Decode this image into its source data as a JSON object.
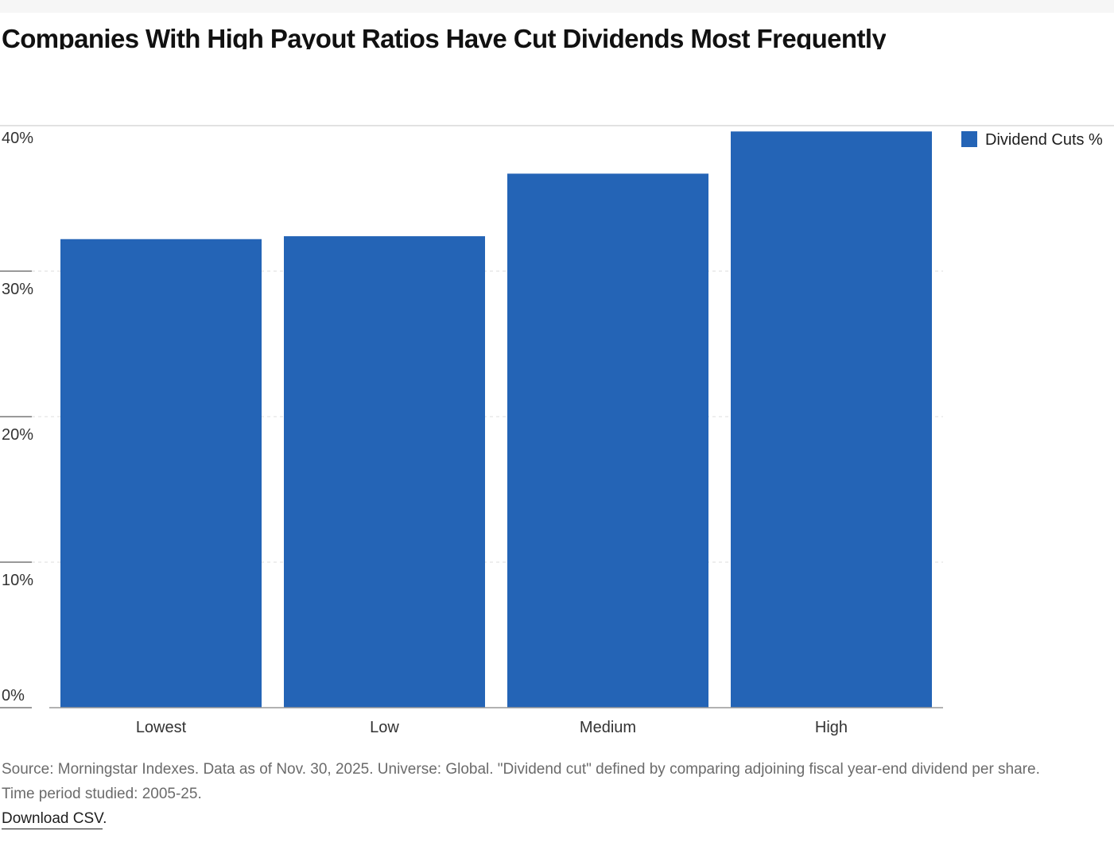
{
  "title": "Companies With High Payout Ratios Have Cut Dividends Most Frequently",
  "footer": {
    "source_note": "Source: Morningstar Indexes. Data as of Nov. 30, 2025. Universe: Global. \"Dividend cut\" defined by comparing adjoining fiscal year-end dividend per share.",
    "period_note": "Time period studied: 2005-25.",
    "download_label": "Download CSV",
    "download_suffix": "."
  },
  "chart_data": {
    "type": "bar",
    "title": "Companies With High Payout Ratios Have Cut Dividends Most Frequently",
    "categories": [
      "Lowest",
      "Low",
      "Medium",
      "High"
    ],
    "series": [
      {
        "name": "Dividend Cuts %",
        "values": [
          32.2,
          32.4,
          36.7,
          39.6
        ],
        "color": "#2464b6"
      }
    ],
    "ylim": [
      0,
      40
    ],
    "yticks": [
      0,
      10,
      20,
      30,
      40
    ],
    "ytick_labels": [
      "0%",
      "10%",
      "20%",
      "30%",
      "40%"
    ],
    "xlabel": "",
    "ylabel": "",
    "grid": true,
    "legend_position": "top-right",
    "colors": {
      "bar": "#2464b6",
      "grid": "#dddddd",
      "axis": "#999999",
      "tick_text": "#333333"
    }
  }
}
